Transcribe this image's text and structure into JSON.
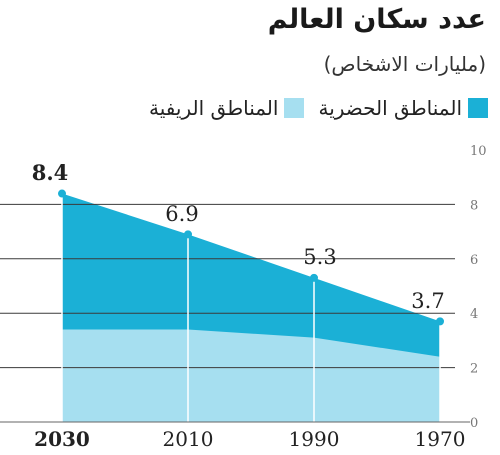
{
  "chart_data": {
    "type": "area",
    "title": "عدد سكان العالم",
    "subtitle": "(مليارات الاشخاص)",
    "categories": [
      "2030",
      "2010",
      "1990",
      "1970"
    ],
    "series": [
      {
        "name": "المناطق الحضرية",
        "values": [
          8.4,
          6.9,
          5.3,
          3.7
        ],
        "color": "#1bb0d6"
      },
      {
        "name": "المناطق الريفية",
        "values": [
          3.4,
          3.4,
          3.1,
          2.4
        ],
        "color": "#a6dff0"
      }
    ],
    "data_labels": [
      "8.4",
      "6.9",
      "5.3",
      "3.7"
    ],
    "y_ticks": [
      "0",
      "2",
      "4",
      "6",
      "8",
      "10"
    ],
    "ylim": [
      0,
      10
    ],
    "grid": true,
    "legend_position": "top"
  }
}
